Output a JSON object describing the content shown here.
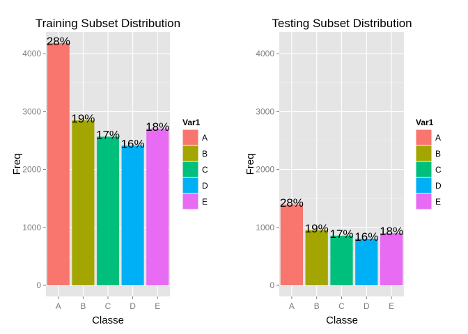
{
  "chart_data": [
    {
      "type": "bar",
      "title": "Training Subset Distribution",
      "xlabel": "Classe",
      "ylabel": "Freq",
      "categories": [
        "A",
        "B",
        "C",
        "D",
        "E"
      ],
      "values": [
        4185,
        2848,
        2567,
        2412,
        2706
      ],
      "data_labels": [
        "28%",
        "19%",
        "17%",
        "16%",
        "18%"
      ],
      "ylim": [
        0,
        4400
      ],
      "yticks": [
        0,
        1000,
        2000,
        3000,
        4000
      ],
      "colors": [
        "#F8766D",
        "#A3A500",
        "#00BF7D",
        "#00B0F6",
        "#E76BF3"
      ],
      "grid": true,
      "legend": {
        "title": "Var1",
        "entries": [
          "A",
          "B",
          "C",
          "D",
          "E"
        ],
        "placement": "right"
      }
    },
    {
      "type": "bar",
      "title": "Testing Subset Distribution",
      "xlabel": "Classe",
      "ylabel": "Freq",
      "categories": [
        "A",
        "B",
        "C",
        "D",
        "E"
      ],
      "values": [
        1395,
        949,
        856,
        804,
        901
      ],
      "data_labels": [
        "28%",
        "19%",
        "17%",
        "16%",
        "18%"
      ],
      "ylim": [
        0,
        4400
      ],
      "yticks": [
        0,
        1000,
        2000,
        3000,
        4000
      ],
      "colors": [
        "#F8766D",
        "#A3A500",
        "#00BF7D",
        "#00B0F6",
        "#E76BF3"
      ],
      "grid": true,
      "legend": {
        "title": "Var1",
        "entries": [
          "A",
          "B",
          "C",
          "D",
          "E"
        ],
        "placement": "right"
      }
    }
  ]
}
